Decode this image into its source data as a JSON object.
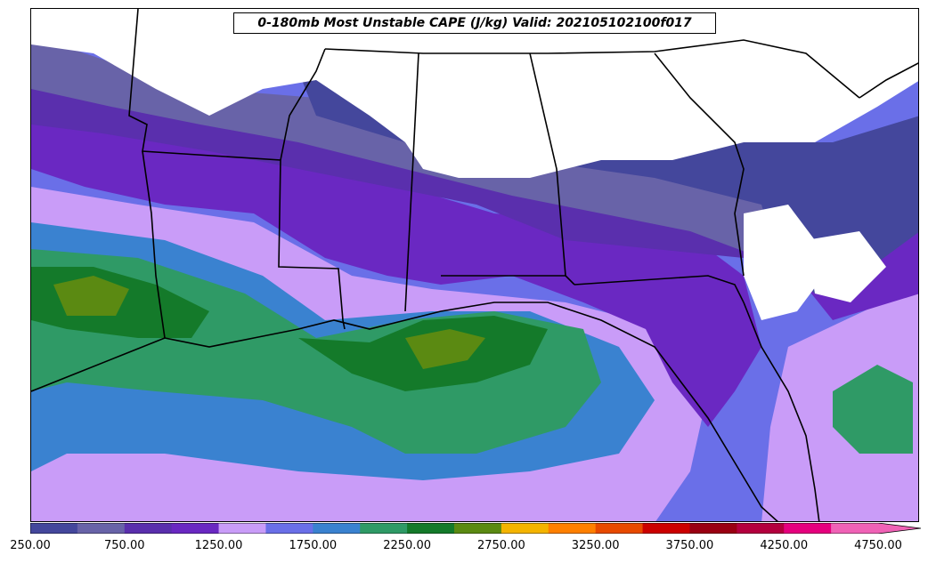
{
  "title": "0-180mb Most Unstable CAPE (J/kg) Valid: 202105102100f017",
  "colorbar": {
    "colors": [
      "#44479c",
      "#6863a8",
      "#5a2fad",
      "#6a28c2",
      "#c99cf8",
      "#6a6fe8",
      "#3a82d0",
      "#2f9a66",
      "#147a2a",
      "#5b8a12",
      "#f4b400",
      "#ff8000",
      "#e84a00",
      "#cc0000",
      "#9a0012",
      "#b4003e",
      "#e6007e",
      "#f062b6"
    ],
    "ticks": [
      "250.00",
      "750.00",
      "1250.00",
      "1750.00",
      "2250.00",
      "2750.00",
      "3250.00",
      "3750.00",
      "4250.00",
      "4750.00"
    ],
    "extend_color": "#f062b6"
  },
  "map": {
    "colors": {
      "none": "#ffffff",
      "slate": "#44479c",
      "grayviolet": "#6863a8",
      "purple": "#5a2fad",
      "violet": "#6a28c2",
      "lavender": "#c99cf8",
      "periwinkle": "#6a6fe8",
      "blue": "#3a82d0",
      "seagreen": "#2f9a66",
      "green": "#147a2a",
      "olive": "#5b8a12",
      "border": "#000000"
    }
  }
}
